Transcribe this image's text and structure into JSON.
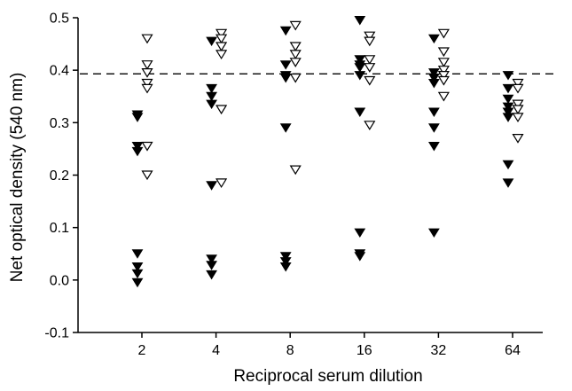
{
  "chart_data": {
    "type": "scatter",
    "xlabel": "Reciprocal serum dilution",
    "ylabel": "Net optical density (540 nm)",
    "x_scale": "log2",
    "categories": [
      "2",
      "4",
      "8",
      "16",
      "32",
      "64"
    ],
    "ylim": [
      -0.1,
      0.5
    ],
    "yticks": [
      "-0.1",
      "0.0",
      "0.1",
      "0.2",
      "0.3",
      "0.4",
      "0.5"
    ],
    "reference_line": {
      "y": 0.393,
      "style": "dashed"
    },
    "grid": false,
    "series": [
      {
        "marker": "filled-down-triangle",
        "color": "#000000",
        "points": [
          {
            "x": 2,
            "y": 0.315
          },
          {
            "x": 2,
            "y": 0.31
          },
          {
            "x": 2,
            "y": 0.255
          },
          {
            "x": 2,
            "y": 0.245
          },
          {
            "x": 2,
            "y": 0.05
          },
          {
            "x": 2,
            "y": 0.025
          },
          {
            "x": 2,
            "y": 0.012
          },
          {
            "x": 2,
            "y": -0.005
          },
          {
            "x": 4,
            "y": 0.455
          },
          {
            "x": 4,
            "y": 0.365
          },
          {
            "x": 4,
            "y": 0.35
          },
          {
            "x": 4,
            "y": 0.335
          },
          {
            "x": 4,
            "y": 0.18
          },
          {
            "x": 4,
            "y": 0.04
          },
          {
            "x": 4,
            "y": 0.028
          },
          {
            "x": 4,
            "y": 0.01
          },
          {
            "x": 8,
            "y": 0.475
          },
          {
            "x": 8,
            "y": 0.41
          },
          {
            "x": 8,
            "y": 0.39
          },
          {
            "x": 8,
            "y": 0.385
          },
          {
            "x": 8,
            "y": 0.29
          },
          {
            "x": 8,
            "y": 0.045
          },
          {
            "x": 8,
            "y": 0.035
          },
          {
            "x": 8,
            "y": 0.025
          },
          {
            "x": 16,
            "y": 0.495
          },
          {
            "x": 16,
            "y": 0.42
          },
          {
            "x": 16,
            "y": 0.41
          },
          {
            "x": 16,
            "y": 0.405
          },
          {
            "x": 16,
            "y": 0.39
          },
          {
            "x": 16,
            "y": 0.32
          },
          {
            "x": 16,
            "y": 0.09
          },
          {
            "x": 16,
            "y": 0.05
          },
          {
            "x": 16,
            "y": 0.045
          },
          {
            "x": 32,
            "y": 0.46
          },
          {
            "x": 32,
            "y": 0.395
          },
          {
            "x": 32,
            "y": 0.385
          },
          {
            "x": 32,
            "y": 0.375
          },
          {
            "x": 32,
            "y": 0.32
          },
          {
            "x": 32,
            "y": 0.29
          },
          {
            "x": 32,
            "y": 0.255
          },
          {
            "x": 32,
            "y": 0.09
          },
          {
            "x": 64,
            "y": 0.39
          },
          {
            "x": 64,
            "y": 0.365
          },
          {
            "x": 64,
            "y": 0.345
          },
          {
            "x": 64,
            "y": 0.33
          },
          {
            "x": 64,
            "y": 0.32
          },
          {
            "x": 64,
            "y": 0.31
          },
          {
            "x": 64,
            "y": 0.22
          },
          {
            "x": 64,
            "y": 0.185
          }
        ]
      },
      {
        "marker": "open-down-triangle",
        "color": "#000000",
        "points": [
          {
            "x": 2,
            "y": 0.46
          },
          {
            "x": 2,
            "y": 0.41
          },
          {
            "x": 2,
            "y": 0.395
          },
          {
            "x": 2,
            "y": 0.375
          },
          {
            "x": 2,
            "y": 0.365
          },
          {
            "x": 2,
            "y": 0.255
          },
          {
            "x": 2,
            "y": 0.2
          },
          {
            "x": 4,
            "y": 0.47
          },
          {
            "x": 4,
            "y": 0.46
          },
          {
            "x": 4,
            "y": 0.445
          },
          {
            "x": 4,
            "y": 0.43
          },
          {
            "x": 4,
            "y": 0.325
          },
          {
            "x": 4,
            "y": 0.185
          },
          {
            "x": 8,
            "y": 0.485
          },
          {
            "x": 8,
            "y": 0.445
          },
          {
            "x": 8,
            "y": 0.43
          },
          {
            "x": 8,
            "y": 0.415
          },
          {
            "x": 8,
            "y": 0.385
          },
          {
            "x": 8,
            "y": 0.21
          },
          {
            "x": 16,
            "y": 0.465
          },
          {
            "x": 16,
            "y": 0.455
          },
          {
            "x": 16,
            "y": 0.42
          },
          {
            "x": 16,
            "y": 0.405
          },
          {
            "x": 16,
            "y": 0.38
          },
          {
            "x": 16,
            "y": 0.295
          },
          {
            "x": 32,
            "y": 0.47
          },
          {
            "x": 32,
            "y": 0.435
          },
          {
            "x": 32,
            "y": 0.415
          },
          {
            "x": 32,
            "y": 0.4
          },
          {
            "x": 32,
            "y": 0.39
          },
          {
            "x": 32,
            "y": 0.38
          },
          {
            "x": 32,
            "y": 0.35
          },
          {
            "x": 64,
            "y": 0.375
          },
          {
            "x": 64,
            "y": 0.365
          },
          {
            "x": 64,
            "y": 0.335
          },
          {
            "x": 64,
            "y": 0.325
          },
          {
            "x": 64,
            "y": 0.31
          },
          {
            "x": 64,
            "y": 0.27
          }
        ]
      }
    ]
  }
}
